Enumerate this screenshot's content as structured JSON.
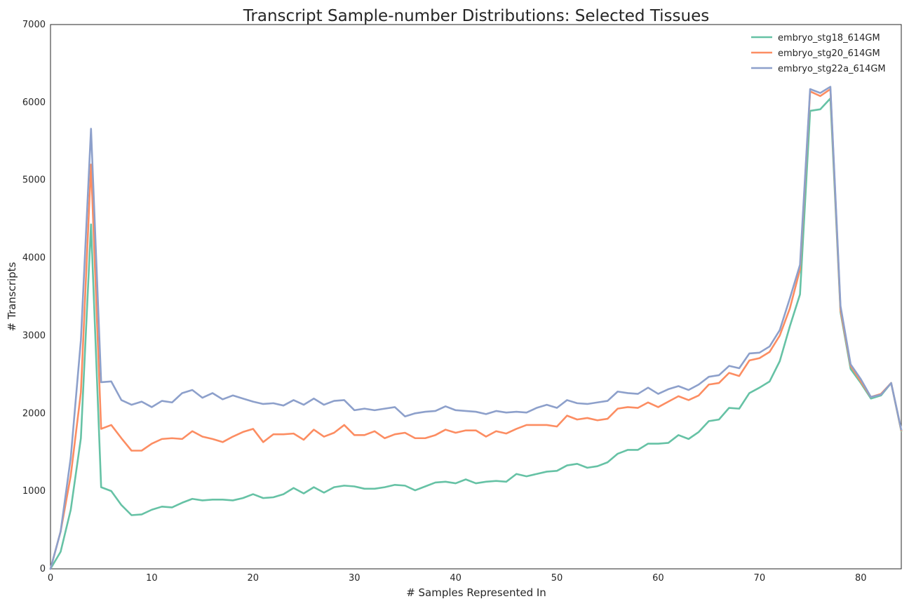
{
  "chart_data": {
    "type": "line",
    "title": "Transcript Sample-number Distributions: Selected Tissues",
    "xlabel": "# Samples Represented In",
    "ylabel": "# Transcripts",
    "xlim": [
      0,
      84
    ],
    "ylim": [
      0,
      7000
    ],
    "xticks": [
      0,
      10,
      20,
      30,
      40,
      50,
      60,
      70,
      80
    ],
    "yticks": [
      0,
      1000,
      2000,
      3000,
      4000,
      5000,
      6000,
      7000
    ],
    "grid": false,
    "legend_position": "top-right",
    "x": [
      0,
      1,
      2,
      3,
      4,
      5,
      6,
      7,
      8,
      9,
      10,
      11,
      12,
      13,
      14,
      15,
      16,
      17,
      18,
      19,
      20,
      21,
      22,
      23,
      24,
      25,
      26,
      27,
      28,
      29,
      30,
      31,
      32,
      33,
      34,
      35,
      36,
      37,
      38,
      39,
      40,
      41,
      42,
      43,
      44,
      45,
      46,
      47,
      48,
      49,
      50,
      51,
      52,
      53,
      54,
      55,
      56,
      57,
      58,
      59,
      60,
      61,
      62,
      63,
      64,
      65,
      66,
      67,
      68,
      69,
      70,
      71,
      72,
      73,
      74,
      75,
      76,
      77,
      78,
      79,
      80,
      81,
      82,
      83,
      84
    ],
    "series": [
      {
        "name": "embryo_stg18_614GM",
        "color": "#66c2a5",
        "values": [
          0,
          220,
          760,
          1680,
          4430,
          1050,
          1000,
          820,
          690,
          700,
          760,
          800,
          790,
          850,
          900,
          880,
          890,
          890,
          880,
          910,
          960,
          910,
          920,
          960,
          1040,
          970,
          1050,
          980,
          1050,
          1070,
          1060,
          1030,
          1030,
          1050,
          1080,
          1070,
          1010,
          1060,
          1110,
          1120,
          1100,
          1150,
          1100,
          1120,
          1130,
          1120,
          1220,
          1190,
          1220,
          1250,
          1260,
          1330,
          1350,
          1300,
          1320,
          1370,
          1480,
          1530,
          1530,
          1610,
          1610,
          1620,
          1720,
          1670,
          1760,
          1900,
          1920,
          2070,
          2060,
          2260,
          2330,
          2410,
          2670,
          3120,
          3530,
          5890,
          5910,
          6050,
          3300,
          2570,
          2390,
          2190,
          2230,
          2390,
          1770
        ]
      },
      {
        "name": "embryo_stg20_614GM",
        "color": "#fc8d62",
        "values": [
          0,
          480,
          1200,
          2270,
          5200,
          1800,
          1850,
          1680,
          1520,
          1520,
          1610,
          1670,
          1680,
          1670,
          1770,
          1700,
          1670,
          1630,
          1700,
          1760,
          1800,
          1630,
          1730,
          1730,
          1740,
          1660,
          1790,
          1700,
          1750,
          1850,
          1720,
          1720,
          1770,
          1680,
          1730,
          1750,
          1680,
          1680,
          1720,
          1790,
          1750,
          1780,
          1780,
          1700,
          1770,
          1740,
          1800,
          1850,
          1850,
          1850,
          1830,
          1970,
          1920,
          1940,
          1910,
          1930,
          2060,
          2080,
          2070,
          2140,
          2080,
          2150,
          2220,
          2170,
          2230,
          2370,
          2390,
          2520,
          2480,
          2680,
          2710,
          2790,
          3000,
          3350,
          3850,
          6140,
          6080,
          6170,
          3330,
          2610,
          2410,
          2210,
          2250,
          2390,
          1780
        ]
      },
      {
        "name": "embryo_stg22a_614GM",
        "color": "#8da0cb",
        "values": [
          0,
          480,
          1430,
          2940,
          5660,
          2400,
          2410,
          2170,
          2110,
          2150,
          2080,
          2160,
          2140,
          2260,
          2300,
          2200,
          2260,
          2180,
          2230,
          2190,
          2150,
          2120,
          2130,
          2100,
          2170,
          2110,
          2190,
          2110,
          2160,
          2170,
          2040,
          2060,
          2040,
          2060,
          2080,
          1960,
          2000,
          2020,
          2030,
          2090,
          2040,
          2030,
          2020,
          1990,
          2030,
          2010,
          2020,
          2010,
          2070,
          2110,
          2070,
          2170,
          2130,
          2120,
          2140,
          2160,
          2280,
          2260,
          2250,
          2330,
          2250,
          2310,
          2350,
          2300,
          2370,
          2470,
          2490,
          2610,
          2580,
          2770,
          2780,
          2860,
          3070,
          3480,
          3910,
          6170,
          6120,
          6200,
          3380,
          2630,
          2440,
          2210,
          2240,
          2390,
          1790
        ]
      }
    ]
  }
}
